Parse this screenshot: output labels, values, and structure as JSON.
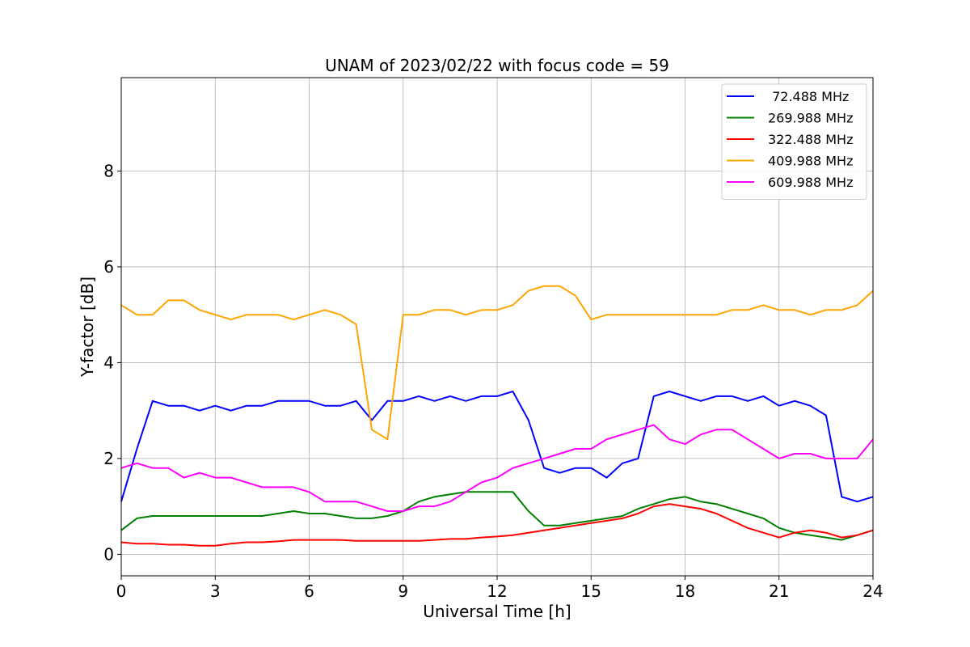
{
  "chart_data": {
    "type": "line",
    "title": "UNAM of 2023/02/22 with focus code = 59",
    "xlabel": "Universal Time [h]",
    "ylabel": "Y-factor [dB]",
    "xlim": [
      0,
      24
    ],
    "ylim": [
      -0.45,
      9.95
    ],
    "xticks": [
      0,
      3,
      6,
      9,
      12,
      15,
      18,
      21,
      24
    ],
    "yticks": [
      0,
      2,
      4,
      6,
      8
    ],
    "grid": true,
    "legend_position": "top-right",
    "x": [
      0,
      0.5,
      1,
      1.5,
      2,
      2.5,
      3,
      3.5,
      4,
      4.5,
      5,
      5.5,
      6,
      6.5,
      7,
      7.5,
      8,
      8.5,
      9,
      9.5,
      10,
      10.5,
      11,
      11.5,
      12,
      12.5,
      13,
      13.5,
      14,
      14.5,
      15,
      15.5,
      16,
      16.5,
      17,
      17.5,
      18,
      18.5,
      19,
      19.5,
      20,
      20.5,
      21,
      21.5,
      22,
      22.5,
      23,
      23.5,
      24
    ],
    "series": [
      {
        "name": " 72.488 MHz",
        "color": "#0000ff",
        "values": [
          1.1,
          2.2,
          3.2,
          3.1,
          3.1,
          3.0,
          3.1,
          3.0,
          3.1,
          3.1,
          3.2,
          3.2,
          3.2,
          3.1,
          3.1,
          3.2,
          2.8,
          3.2,
          3.2,
          3.3,
          3.2,
          3.3,
          3.2,
          3.3,
          3.3,
          3.4,
          2.8,
          1.8,
          1.7,
          1.8,
          1.8,
          1.6,
          1.9,
          2.0,
          3.3,
          3.4,
          3.3,
          3.2,
          3.3,
          3.3,
          3.2,
          3.3,
          3.1,
          3.2,
          3.1,
          2.9,
          1.2,
          1.1,
          1.2
        ]
      },
      {
        "name": "269.988 MHz",
        "color": "#008000",
        "values": [
          0.5,
          0.75,
          0.8,
          0.8,
          0.8,
          0.8,
          0.8,
          0.8,
          0.8,
          0.8,
          0.85,
          0.9,
          0.85,
          0.85,
          0.8,
          0.75,
          0.75,
          0.8,
          0.9,
          1.1,
          1.2,
          1.25,
          1.3,
          1.3,
          1.3,
          1.3,
          0.9,
          0.6,
          0.6,
          0.65,
          0.7,
          0.75,
          0.8,
          0.95,
          1.05,
          1.15,
          1.2,
          1.1,
          1.05,
          0.95,
          0.85,
          0.75,
          0.55,
          0.45,
          0.4,
          0.35,
          0.3,
          0.4,
          0.5
        ]
      },
      {
        "name": "322.488 MHz",
        "color": "#ff0000",
        "values": [
          0.25,
          0.22,
          0.22,
          0.2,
          0.2,
          0.18,
          0.18,
          0.22,
          0.25,
          0.25,
          0.27,
          0.3,
          0.3,
          0.3,
          0.3,
          0.28,
          0.28,
          0.28,
          0.28,
          0.28,
          0.3,
          0.32,
          0.32,
          0.35,
          0.37,
          0.4,
          0.45,
          0.5,
          0.55,
          0.6,
          0.65,
          0.7,
          0.75,
          0.85,
          1.0,
          1.05,
          1.0,
          0.95,
          0.85,
          0.7,
          0.55,
          0.45,
          0.35,
          0.45,
          0.5,
          0.45,
          0.35,
          0.4,
          0.5
        ]
      },
      {
        "name": "409.988 MHz",
        "color": "#ffa500",
        "values": [
          5.2,
          5.0,
          5.0,
          5.3,
          5.3,
          5.1,
          5.0,
          4.9,
          5.0,
          5.0,
          5.0,
          4.9,
          5.0,
          5.1,
          5.0,
          4.8,
          2.6,
          2.4,
          5.0,
          5.0,
          5.1,
          5.1,
          5.0,
          5.1,
          5.1,
          5.2,
          5.5,
          5.6,
          5.6,
          5.4,
          4.9,
          5.0,
          5.0,
          5.0,
          5.0,
          5.0,
          5.0,
          5.0,
          5.0,
          5.1,
          5.1,
          5.2,
          5.1,
          5.1,
          5.0,
          5.1,
          5.1,
          5.2,
          5.5
        ]
      },
      {
        "name": "609.988 MHz",
        "color": "#ff00ff",
        "values": [
          1.8,
          1.9,
          1.8,
          1.8,
          1.6,
          1.7,
          1.6,
          1.6,
          1.5,
          1.4,
          1.4,
          1.4,
          1.3,
          1.1,
          1.1,
          1.1,
          1.0,
          0.9,
          0.9,
          1.0,
          1.0,
          1.1,
          1.3,
          1.5,
          1.6,
          1.8,
          1.9,
          2.0,
          2.1,
          2.2,
          2.2,
          2.4,
          2.5,
          2.6,
          2.7,
          2.4,
          2.3,
          2.5,
          2.6,
          2.6,
          2.4,
          2.2,
          2.0,
          2.1,
          2.1,
          2.0,
          2.0,
          2.0,
          2.4
        ]
      }
    ]
  }
}
